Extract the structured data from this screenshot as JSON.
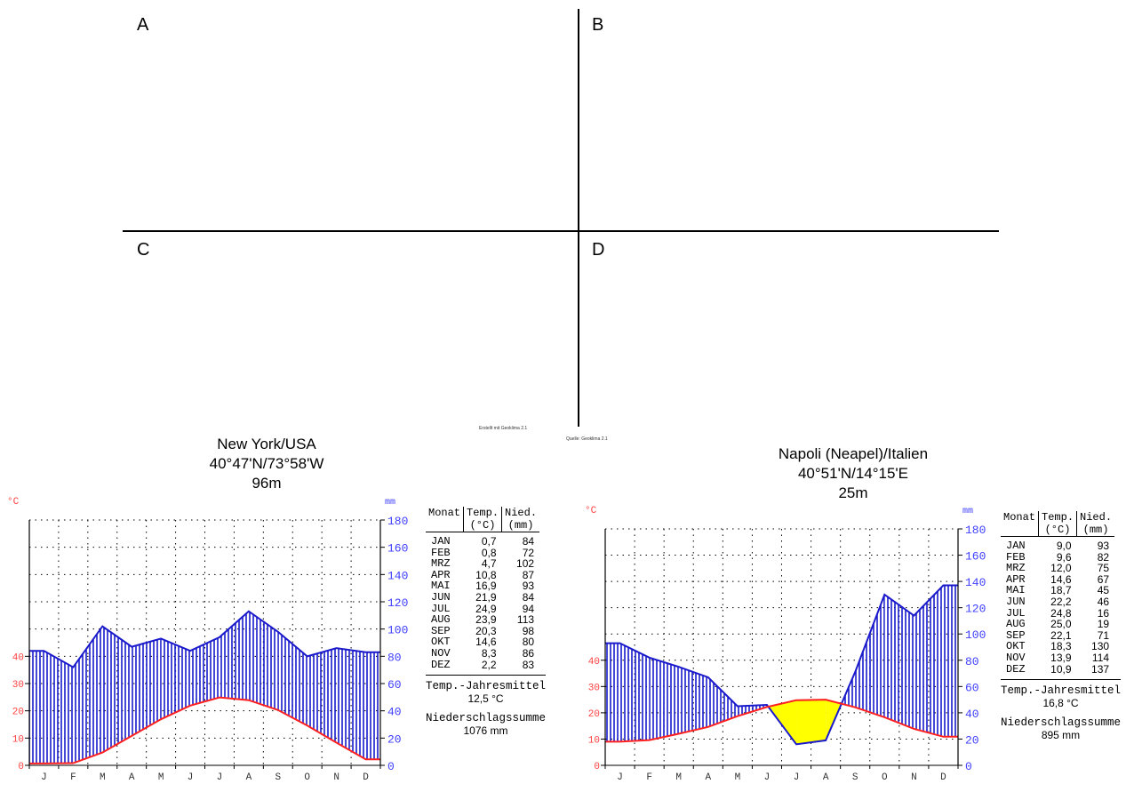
{
  "quadrant_labels": [
    "A",
    "B",
    "C",
    "D"
  ],
  "notes": {
    "created_with": "Erstellt mit Geoklima 2.1",
    "source": "Quelle: Geoklima 2.1"
  },
  "units": {
    "temp": "°C",
    "precip": "mm"
  },
  "table_headers": {
    "month": "Monat",
    "temp": "Temp.",
    "temp_unit": "(°C)",
    "precip": "Nied.",
    "precip_unit": "(mm)"
  },
  "footer_labels": {
    "mean_temp": "Temp.-Jahresmittel",
    "precip_sum": "Niederschlagssumme"
  },
  "colors": {
    "temp_line": "#ff2020",
    "precip_line": "#1a1acc",
    "humid_fill": "#1a1acc",
    "arid_fill": "#ffff00",
    "temp_axis": "#ff4040",
    "precip_axis": "#4040ff"
  },
  "chart_data": [
    {
      "type": "climate-diagram",
      "station": {
        "name": "New York/USA",
        "coords": "40°47'N/73°58'W",
        "elevation": "96m"
      },
      "months": [
        "J",
        "F",
        "M",
        "A",
        "M",
        "J",
        "J",
        "A",
        "S",
        "O",
        "N",
        "D"
      ],
      "month_codes": [
        "JAN",
        "FEB",
        "MRZ",
        "APR",
        "MAI",
        "JUN",
        "JUL",
        "AUG",
        "SEP",
        "OKT",
        "NOV",
        "DEZ"
      ],
      "temp_c": [
        "0,7",
        "0,8",
        "4,7",
        "10,8",
        "16,9",
        "21,9",
        "24,9",
        "23,9",
        "20,3",
        "14,6",
        "8,3",
        "2,2"
      ],
      "precip_mm": [
        84,
        72,
        102,
        87,
        93,
        84,
        94,
        113,
        98,
        80,
        86,
        83
      ],
      "temp_ticks": [
        0,
        10,
        20,
        30,
        40
      ],
      "precip_ticks": [
        0,
        20,
        40,
        60,
        80,
        100,
        120,
        140,
        160,
        180
      ],
      "mean_temp": "12,5 °C",
      "precip_sum": "1076 mm"
    },
    {
      "type": "climate-diagram",
      "station": {
        "name": "Napoli (Neapel)/Italien",
        "coords": "40°51'N/14°15'E",
        "elevation": "25m"
      },
      "months": [
        "J",
        "F",
        "M",
        "A",
        "M",
        "J",
        "J",
        "A",
        "S",
        "O",
        "N",
        "D"
      ],
      "month_codes": [
        "JAN",
        "FEB",
        "MRZ",
        "APR",
        "MAI",
        "JUN",
        "JUL",
        "AUG",
        "SEP",
        "OKT",
        "NOV",
        "DEZ"
      ],
      "temp_c": [
        "9,0",
        "9,6",
        "12,0",
        "14,6",
        "18,7",
        "22,2",
        "24,8",
        "25,0",
        "22,1",
        "18,3",
        "13,9",
        "10,9"
      ],
      "precip_mm": [
        93,
        82,
        75,
        67,
        45,
        46,
        16,
        19,
        71,
        130,
        114,
        137
      ],
      "temp_ticks": [
        0,
        10,
        20,
        30,
        40
      ],
      "precip_ticks": [
        0,
        20,
        40,
        60,
        80,
        100,
        120,
        140,
        160,
        180
      ],
      "mean_temp": "16,8 °C",
      "precip_sum": "895 mm"
    }
  ]
}
